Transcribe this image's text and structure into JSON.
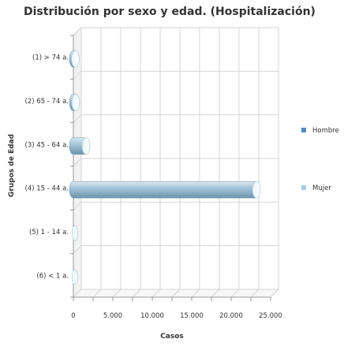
{
  "chart_data": {
    "type": "bar",
    "orientation": "horizontal",
    "title": "Distribución por sexo y edad. (Hospitalización)",
    "xlabel": "Casos",
    "ylabel": "Grupos de Edad",
    "categories": [
      "(1) > 74 a.",
      "(2) 65 - 74 a.",
      "(3) 45 - 64 a.",
      "(4) 15 - 44 a.",
      "(5) 1 - 14 a.",
      "(6) < 1 a."
    ],
    "series": [
      {
        "name": "Hombre",
        "values": [
          250,
          300,
          1600,
          23200,
          0,
          0
        ]
      },
      {
        "name": "Mujer",
        "values": [
          0,
          0,
          0,
          0,
          0,
          0
        ]
      }
    ],
    "xlim": [
      0,
      25000
    ],
    "xticks": [
      0,
      2500,
      5000,
      7500,
      10000,
      12500,
      15000,
      17500,
      20000,
      22500,
      25000
    ],
    "xtick_labels": [
      "0",
      "",
      "5.000",
      "",
      "10.000",
      "",
      "15.000",
      "",
      "20.000",
      "",
      "25.000"
    ],
    "grid": true,
    "legend_position": "right",
    "colors": {
      "Hombre": "#4d8dbd",
      "Mujer": "#a6cde8",
      "bar_fill_mid": "#a9c9dc",
      "bar_fill_dark": "#6d93ab"
    }
  }
}
